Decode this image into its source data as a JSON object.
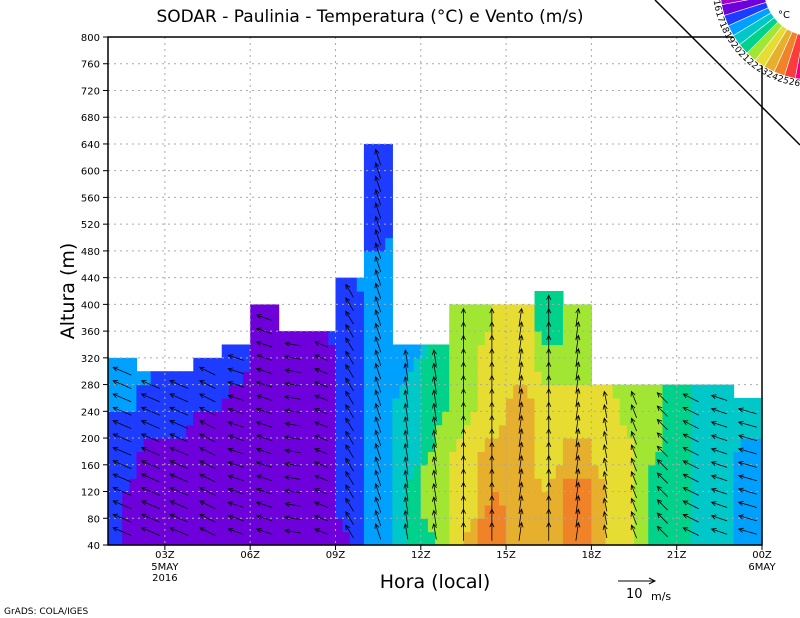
{
  "chart_data": {
    "type": "heatmap",
    "title": "SODAR - Paulinia - Temperatura (°C) e Vento (m/s)",
    "xlabel": "Hora (local)",
    "ylabel": "Altura (m)",
    "xlim": [
      1,
      24
    ],
    "ylim": [
      40,
      800
    ],
    "x_ticks": [
      {
        "hour": 3,
        "label": "03Z",
        "sub1": "5MAY",
        "sub2": "2016"
      },
      {
        "hour": 6,
        "label": "06Z"
      },
      {
        "hour": 9,
        "label": "09Z"
      },
      {
        "hour": 12,
        "label": "12Z"
      },
      {
        "hour": 15,
        "label": "15Z"
      },
      {
        "hour": 18,
        "label": "18Z"
      },
      {
        "hour": 21,
        "label": "21Z"
      },
      {
        "hour": 24,
        "label": "00Z",
        "sub1": "6MAY"
      }
    ],
    "y_ticks": [
      40,
      80,
      120,
      160,
      200,
      240,
      280,
      320,
      360,
      400,
      440,
      480,
      520,
      560,
      600,
      640,
      680,
      720,
      760,
      800
    ],
    "grid": true,
    "profile_heights": [
      40,
      120,
      200,
      280,
      360,
      440,
      520,
      600
    ],
    "columns": [
      {
        "hour": 1.5,
        "top": 320,
        "temps": [
          17,
          17,
          17.5,
          18.5
        ],
        "u": -7,
        "v": 3
      },
      {
        "hour": 2.5,
        "top": 300,
        "temps": [
          16.5,
          16.5,
          17,
          18
        ],
        "u": -7,
        "v": 3
      },
      {
        "hour": 3.5,
        "top": 300,
        "temps": [
          16.5,
          16.5,
          17,
          17.5
        ],
        "u": -7,
        "v": 3
      },
      {
        "hour": 4.5,
        "top": 320,
        "temps": [
          16.5,
          16.5,
          16.5,
          17.5
        ],
        "u": -6,
        "v": 3
      },
      {
        "hour": 5.5,
        "top": 340,
        "temps": [
          16.5,
          16.5,
          16.5,
          17,
          17.5
        ],
        "u": -6,
        "v": 2
      },
      {
        "hour": 6.5,
        "top": 400,
        "temps": [
          16,
          16,
          16,
          16.5,
          16.5
        ],
        "u": -6,
        "v": 2
      },
      {
        "hour": 7.5,
        "top": 360,
        "temps": [
          16,
          16,
          16,
          16.5,
          17
        ],
        "u": -6,
        "v": 1
      },
      {
        "hour": 8.5,
        "top": 360,
        "temps": [
          16,
          16,
          16,
          16.5,
          17
        ],
        "u": -5,
        "v": 2
      },
      {
        "hour": 9.5,
        "top": 440,
        "temps": [
          17,
          17.5,
          17.5,
          17.5,
          17.5,
          18
        ],
        "u": -3,
        "v": 5
      },
      {
        "hour": 10.5,
        "top": 640,
        "temps": [
          18.5,
          18.5,
          18.5,
          18.5,
          18.5,
          18.5,
          17.5,
          17.5
        ],
        "u": -2,
        "v": 6
      },
      {
        "hour": 11.5,
        "top": 340,
        "temps": [
          20,
          20,
          19.5,
          19,
          18.5
        ],
        "u": -1,
        "v": 6
      },
      {
        "hour": 12.5,
        "top": 340,
        "temps": [
          21,
          21.5,
          21,
          20.5,
          20
        ],
        "u": -1,
        "v": 6
      },
      {
        "hour": 13.5,
        "top": 400,
        "temps": [
          23,
          22.5,
          22,
          21.5,
          21.5
        ],
        "u": 0,
        "v": 7
      },
      {
        "hour": 14.5,
        "top": 400,
        "temps": [
          24.5,
          24,
          23,
          22.5,
          22
        ],
        "u": 0,
        "v": 7
      },
      {
        "hour": 15.5,
        "top": 400,
        "temps": [
          23.5,
          23.5,
          23.5,
          23,
          22.5
        ],
        "u": 1,
        "v": 7
      },
      {
        "hour": 16.5,
        "top": 420,
        "temps": [
          23.5,
          23,
          22.5,
          22,
          20.5,
          20.5
        ],
        "u": 0,
        "v": 7
      },
      {
        "hour": 17.5,
        "top": 400,
        "temps": [
          25,
          24.5,
          23,
          22,
          21.5
        ],
        "u": 1,
        "v": 7
      },
      {
        "hour": 18.5,
        "top": 280,
        "temps": [
          23,
          23,
          22.5,
          22
        ],
        "u": -1,
        "v": 5
      },
      {
        "hour": 19.5,
        "top": 280,
        "temps": [
          22,
          22,
          22,
          21.5
        ],
        "u": -2,
        "v": 5
      },
      {
        "hour": 20.5,
        "top": 280,
        "temps": [
          20.5,
          20.5,
          21,
          21
        ],
        "u": -4,
        "v": 4
      },
      {
        "hour": 21.5,
        "top": 280,
        "temps": [
          20,
          20,
          20,
          20
        ],
        "u": -6,
        "v": 3
      },
      {
        "hour": 22.5,
        "top": 280,
        "temps": [
          19.5,
          19.5,
          19.5,
          19.5
        ],
        "u": -6,
        "v": 2
      },
      {
        "hour": 23.5,
        "top": 260,
        "temps": [
          18.5,
          18.5,
          19,
          19
        ],
        "u": -7,
        "v": 2
      }
    ],
    "colorbar": {
      "unit": "°C",
      "levels": [
        16,
        17,
        18,
        19,
        20,
        21,
        22,
        23,
        24,
        25,
        26
      ],
      "colors": [
        "#a000c8",
        "#6e00dc",
        "#1e3cff",
        "#00a0ff",
        "#00c8c8",
        "#00d28c",
        "#a0e632",
        "#e6dc32",
        "#e6af2d",
        "#f08228",
        "#fa3c3c",
        "#f00082"
      ]
    },
    "reference_vector": {
      "speed": 10,
      "label": "10",
      "unit": "m/s"
    },
    "credit": "GrADS: COLA/IGES"
  }
}
